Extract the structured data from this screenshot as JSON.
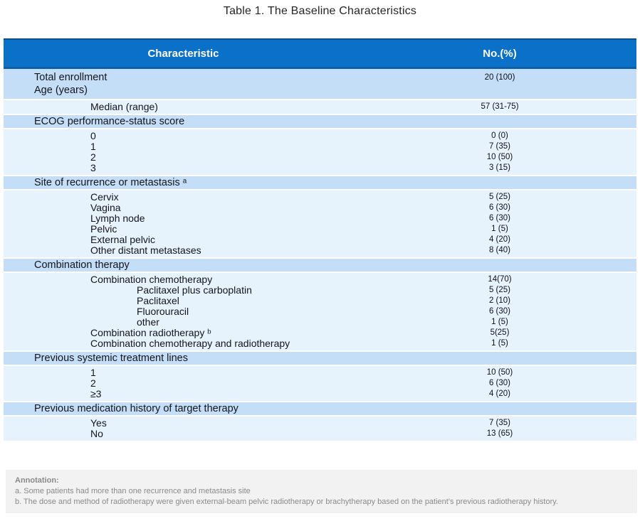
{
  "title": "Table 1. The Baseline Characteristics",
  "header": {
    "characteristic": "Characteristic",
    "no_pct": "No.(%)"
  },
  "sections": [
    {
      "header_lines": [
        {
          "label": "Total enrollment",
          "value": "20 (100)"
        },
        {
          "label": "Age (years)",
          "value": ""
        }
      ],
      "rows": [
        {
          "label": "Median (range)",
          "value": "57 (31-75)",
          "indent": 1
        }
      ]
    },
    {
      "header_lines": [
        {
          "label": "ECOG performance-status score",
          "value": ""
        }
      ],
      "rows": [
        {
          "label": "0",
          "value": "0 (0)",
          "indent": 1
        },
        {
          "label": "1",
          "value": "7 (35)",
          "indent": 1
        },
        {
          "label": "2",
          "value": "10 (50)",
          "indent": 1
        },
        {
          "label": "3",
          "value": "3 (15)",
          "indent": 1
        }
      ]
    },
    {
      "header_lines": [
        {
          "label": "Site of recurrence or metastasis ᵃ",
          "value": ""
        }
      ],
      "rows": [
        {
          "label": "Cervix",
          "value": "5 (25)",
          "indent": 1
        },
        {
          "label": "Vagina",
          "value": "6 (30)",
          "indent": 1
        },
        {
          "label": "Lymph node",
          "value": "6 (30)",
          "indent": 1
        },
        {
          "label": "Pelvic",
          "value": "1 (5)",
          "indent": 1
        },
        {
          "label": "External pelvic",
          "value": "4 (20)",
          "indent": 1
        },
        {
          "label": "Other distant metastases",
          "value": "8 (40)",
          "indent": 1
        }
      ]
    },
    {
      "header_lines": [
        {
          "label": "Combination therapy",
          "value": ""
        }
      ],
      "rows": [
        {
          "label": "Combination chemotherapy",
          "value": "14(70)",
          "indent": 1
        },
        {
          "label": "Paclitaxel plus carboplatin",
          "value": "5 (25)",
          "indent": 2
        },
        {
          "label": "Paclitaxel",
          "value": "2 (10)",
          "indent": 2
        },
        {
          "label": "Fluorouracil",
          "value": "6 (30)",
          "indent": 2
        },
        {
          "label": "other",
          "value": "1 (5)",
          "indent": 2
        },
        {
          "label": "Combination radiotherapy ᵇ",
          "value": "5(25)",
          "indent": 1
        },
        {
          "label": "Combination chemotherapy and radiotherapy",
          "value": "1 (5)",
          "indent": 1
        }
      ]
    },
    {
      "header_lines": [
        {
          "label": "Previous systemic treatment lines",
          "value": ""
        }
      ],
      "rows": [
        {
          "label": "1",
          "value": "10 (50)",
          "indent": 1
        },
        {
          "label": "2",
          "value": "6 (30)",
          "indent": 1
        },
        {
          "label": "≥3",
          "value": "4 (20)",
          "indent": 1
        }
      ]
    },
    {
      "header_lines": [
        {
          "label": "Previous medication history of target therapy",
          "value": ""
        }
      ],
      "rows": [
        {
          "label": "Yes",
          "value": "7 (35)",
          "indent": 1
        },
        {
          "label": "No",
          "value": "13 (65)",
          "indent": 1
        }
      ]
    }
  ],
  "annotation": {
    "title": "Annotation:",
    "notes": [
      "a. Some patients had more than one recurrence and metastasis site",
      "b. The dose and method of radiotherapy were given external-beam pelvic radiotherapy or brachytherapy based on the patient's previous radiotherapy history."
    ]
  },
  "colors": {
    "header_bg": "#0a70c8",
    "section_band_bg": "#c3def6",
    "data_band_bg": "#e6f2fc",
    "annotation_bg": "#f2f2f2",
    "annotation_text": "#8a8a8a",
    "body_text": "#14141c",
    "header_text": "#ffffff"
  }
}
